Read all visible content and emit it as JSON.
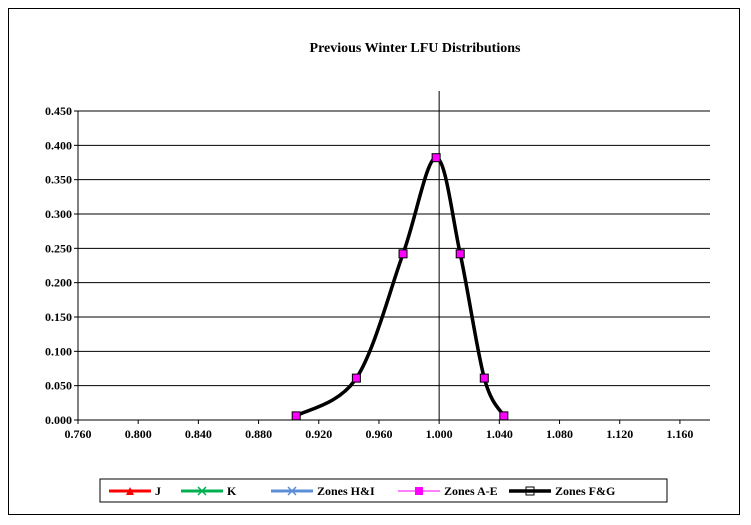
{
  "chart_data": {
    "type": "line",
    "title": "Previous Winter LFU Distributions",
    "xlabel": "",
    "ylabel": "",
    "xlim": [
      0.76,
      1.18
    ],
    "ylim": [
      0,
      0.45
    ],
    "x_ticks": [
      "0.760",
      "0.800",
      "0.840",
      "0.880",
      "0.920",
      "0.960",
      "1.000",
      "1.040",
      "1.080",
      "1.120",
      "1.160"
    ],
    "y_ticks": [
      "0.000",
      "0.050",
      "0.100",
      "0.150",
      "0.200",
      "0.250",
      "0.300",
      "0.350",
      "0.400",
      "0.450"
    ],
    "vertical_reference_x": 1.0,
    "grid": "horizontal",
    "legend_position": "bottom",
    "series": [
      {
        "name": "J",
        "color": "#ff0000",
        "marker": "triangle",
        "line_width": 3,
        "x": [
          0.905,
          0.945,
          0.976,
          0.998,
          1.014,
          1.03,
          1.043
        ],
        "y": [
          0.006,
          0.061,
          0.242,
          0.382,
          0.242,
          0.061,
          0.006
        ]
      },
      {
        "name": "K",
        "color": "#00b050",
        "marker": "x",
        "line_width": 3,
        "x": [
          0.905,
          0.945,
          0.976,
          0.998,
          1.014,
          1.03,
          1.043
        ],
        "y": [
          0.006,
          0.061,
          0.242,
          0.382,
          0.242,
          0.061,
          0.006
        ]
      },
      {
        "name": "Zones H&I",
        "color": "#5b8ed6",
        "marker": "x",
        "line_width": 3,
        "x": [
          0.905,
          0.945,
          0.976,
          0.998,
          1.014,
          1.03,
          1.043
        ],
        "y": [
          0.006,
          0.061,
          0.242,
          0.382,
          0.242,
          0.061,
          0.006
        ]
      },
      {
        "name": "Zones A-E",
        "color": "#ff00ff",
        "marker": "square-filled",
        "line_width": 1,
        "x": [
          0.905,
          0.945,
          0.976,
          0.998,
          1.014,
          1.03,
          1.043
        ],
        "y": [
          0.006,
          0.061,
          0.242,
          0.382,
          0.242,
          0.061,
          0.006
        ]
      },
      {
        "name": "Zones F&G",
        "color": "#000000",
        "marker": "square-open",
        "line_width": 3.5,
        "x": [
          0.905,
          0.945,
          0.976,
          0.998,
          1.014,
          1.03,
          1.043
        ],
        "y": [
          0.006,
          0.061,
          0.242,
          0.382,
          0.242,
          0.061,
          0.006
        ]
      }
    ]
  }
}
